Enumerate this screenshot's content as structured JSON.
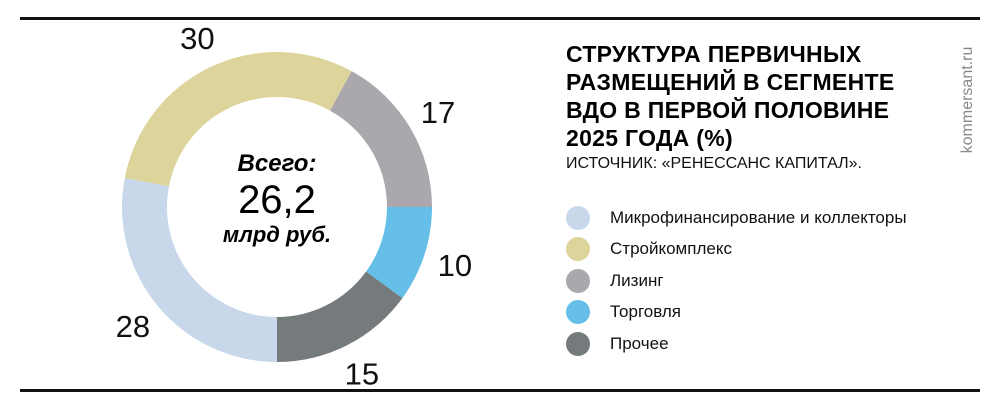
{
  "title": "СТРУКТУРА ПЕРВИЧНЫХ РАЗМЕЩЕНИЙ В СЕГМЕНТЕ ВДО В ПЕРВОЙ ПОЛОВИНЕ 2025 ГОДА (%)",
  "source": "ИСТОЧНИК: «РЕНЕССАНС КАПИТАЛ».",
  "watermark": "kommersant.ru",
  "center": {
    "label": "Всего:",
    "value": "26,2",
    "unit": "млрд руб."
  },
  "chart_data": {
    "type": "pie",
    "donut": true,
    "title": "СТРУКТУРА ПЕРВИЧНЫХ РАЗМЕЩЕНИЙ В СЕГМЕНТЕ ВДО В ПЕРВОЙ ПОЛОВИНЕ 2025 ГОДА (%)",
    "legend_position": "right",
    "categories": [
      "Микрофинансирование и коллекторы",
      "Стройкомплекс",
      "Лизинг",
      "Торговля",
      "Прочее"
    ],
    "values": [
      28,
      30,
      17,
      10,
      15
    ],
    "labels": [
      "28",
      "30",
      "17",
      "10",
      "15"
    ],
    "colors": [
      "#c8d8ea",
      "#ddd49c",
      "#aaa8ad",
      "#66bfe8",
      "#757a7c"
    ]
  }
}
